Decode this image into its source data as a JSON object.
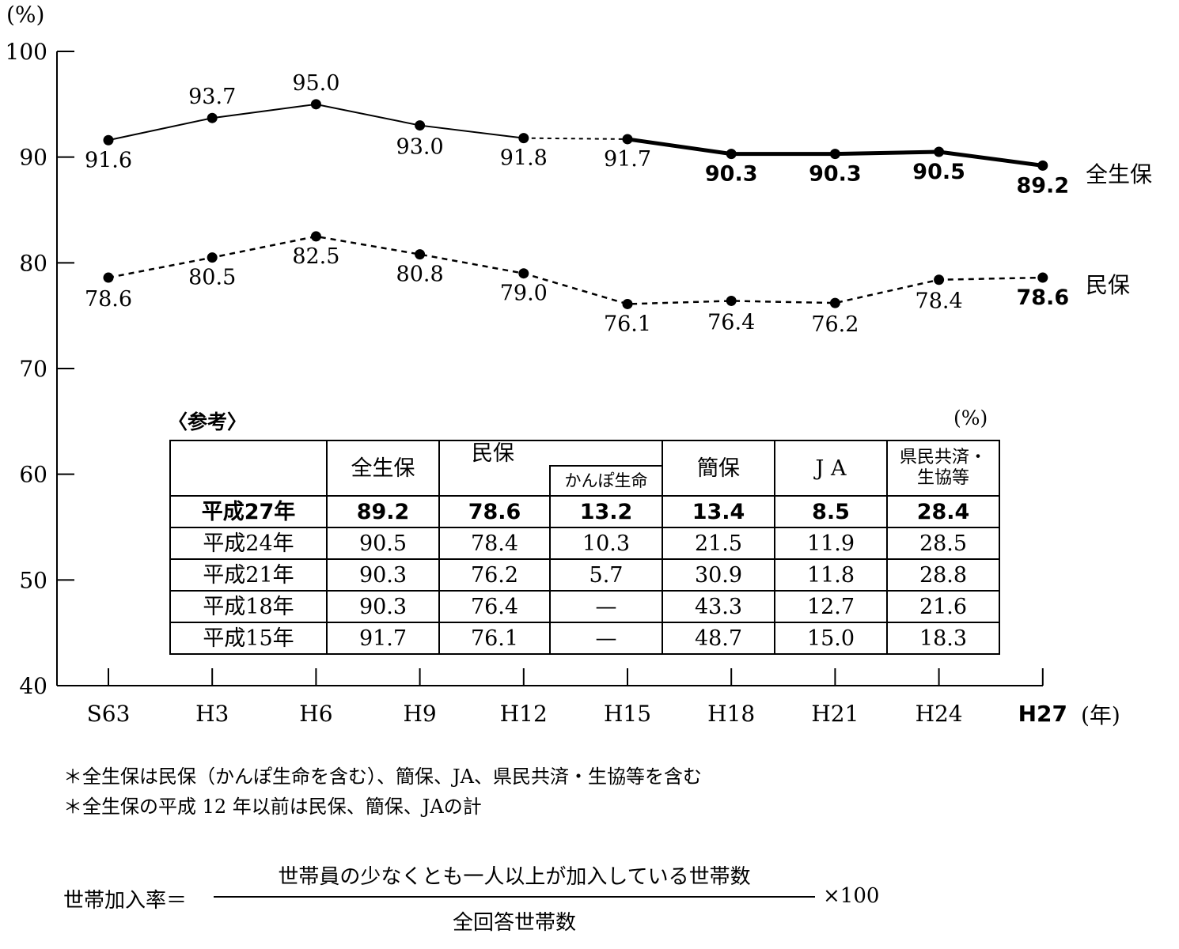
{
  "chart_data": {
    "type": "line",
    "y_unit": "(%)",
    "x_unit": "(年)",
    "ylim": [
      40,
      100
    ],
    "yticks": [
      40,
      50,
      60,
      70,
      80,
      90,
      100
    ],
    "categories": [
      "S63",
      "H3",
      "H6",
      "H9",
      "H12",
      "H15",
      "H18",
      "H21",
      "H24",
      "H27"
    ],
    "grid": false,
    "series": [
      {
        "name": "全生保",
        "values": [
          91.6,
          93.7,
          95.0,
          93.0,
          91.8,
          91.7,
          90.3,
          90.3,
          90.5,
          89.2
        ],
        "labels": [
          "91.6",
          "93.7",
          "95.0",
          "93.0",
          "91.8",
          "91.7",
          "90.3",
          "90.3",
          "90.5",
          "89.2"
        ]
      },
      {
        "name": "民保",
        "values": [
          78.6,
          80.5,
          82.5,
          80.8,
          79.0,
          76.1,
          76.4,
          76.2,
          78.4,
          78.6
        ],
        "labels": [
          "78.6",
          "80.5",
          "82.5",
          "80.8",
          "79.0",
          "76.1",
          "76.4",
          "76.2",
          "78.4",
          "78.6"
        ]
      }
    ]
  },
  "reference_table": {
    "caption": "〈参考〉",
    "unit": "(%)",
    "headers": [
      "全生保",
      "民保",
      "かんぽ生命",
      "簡保",
      "J A",
      "県民共済・",
      "生協等"
    ],
    "rows": [
      {
        "year": "平成27年",
        "cells": [
          "89.2",
          "78.6",
          "13.2",
          "13.4",
          "8.5",
          "28.4"
        ]
      },
      {
        "year": "平成24年",
        "cells": [
          "90.5",
          "78.4",
          "10.3",
          "21.5",
          "11.9",
          "28.5"
        ]
      },
      {
        "year": "平成21年",
        "cells": [
          "90.3",
          "76.2",
          "5.7",
          "30.9",
          "11.8",
          "28.8"
        ]
      },
      {
        "year": "平成18年",
        "cells": [
          "90.3",
          "76.4",
          "—",
          "43.3",
          "12.7",
          "21.6"
        ]
      },
      {
        "year": "平成15年",
        "cells": [
          "91.7",
          "76.1",
          "—",
          "48.7",
          "15.0",
          "18.3"
        ]
      }
    ]
  },
  "notes": [
    "＊全生保は民保（かんぽ生命を含む）、簡保、JA、県民共済・生協等を含む",
    "＊全生保の平成 12 年以前は民保、簡保、JAの計"
  ],
  "formula": {
    "label": "世帯加入率＝",
    "numerator": "世帯員の少なくとも一人以上が加入している世帯数",
    "denominator": "全回答世帯数",
    "multiplier": "×100"
  }
}
